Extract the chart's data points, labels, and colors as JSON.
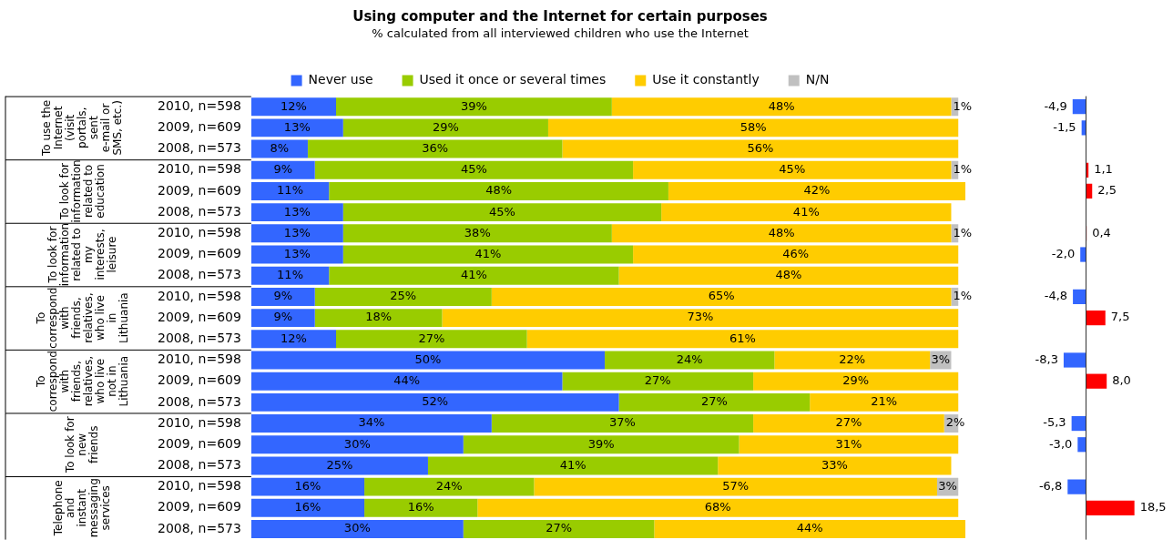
{
  "chart_data": [
    {
      "type": "bar",
      "orientation": "horizontal",
      "stacked": true,
      "title": "Using computer and the Internet for certain purposes",
      "subtitle": "% calculated from all interviewed children who use the Internet",
      "categories": [
        "2010, n=598",
        "2009, n=609",
        "2008, n=573",
        "2010, n=598",
        "2009, n=609",
        "2008, n=573",
        "2010, n=598",
        "2009, n=609",
        "2008, n=573",
        "2010, n=598",
        "2009, n=609",
        "2008, n=573",
        "2010, n=598",
        "2009, n=609",
        "2008, n=573",
        "2010, n=598",
        "2009, n=609",
        "2008, n=573",
        "2010, n=598",
        "2009, n=609",
        "2008, n=573"
      ],
      "annotations": [
        "To use the Internet (visit portals, sent e-mail or SMS, etc.)",
        "To look for information related to education",
        "To look for information related to my interests, leisure",
        "To correspond with friends, relatives, who live in Lithuania",
        "To correspond with friends, relatives, who live not in Lithuania",
        "To look for new friends",
        "Telephone and instant messaging services"
      ],
      "series": [
        {
          "name": "Never use",
          "color": "#3366ff",
          "values": [
            12,
            13,
            8,
            9,
            11,
            13,
            13,
            13,
            11,
            9,
            9,
            12,
            50,
            44,
            52,
            34,
            30,
            25,
            16,
            16,
            30
          ],
          "value_labels": [
            "12%",
            "13%",
            "8%",
            "9%",
            "11%",
            "13%",
            "13%",
            "13%",
            "11%",
            "9%",
            "9%",
            "12%",
            "50%",
            "44%",
            "52%",
            "34%",
            "30%",
            "25%",
            "16%",
            "16%",
            "30%"
          ]
        },
        {
          "name": "Used it once or several times",
          "color": "#99cc00",
          "values": [
            39,
            29,
            36,
            45,
            48,
            45,
            38,
            41,
            41,
            25,
            18,
            27,
            24,
            27,
            27,
            37,
            39,
            41,
            24,
            16,
            27
          ],
          "value_labels": [
            "39%",
            "29%",
            "36%",
            "45%",
            "48%",
            "45%",
            "38%",
            "41%",
            "41%",
            "25%",
            "18%",
            "27%",
            "24%",
            "27%",
            "27%",
            "37%",
            "39%",
            "41%",
            "24%",
            "16%",
            "27%"
          ]
        },
        {
          "name": "Use it constantly",
          "color": "#ffcc00",
          "values": [
            48,
            58,
            56,
            45,
            42,
            41,
            48,
            46,
            48,
            65,
            73,
            61,
            22,
            29,
            21,
            27,
            31,
            33,
            57,
            68,
            44
          ],
          "value_labels": [
            "48%",
            "58%",
            "56%",
            "45%",
            "42%",
            "41%",
            "48%",
            "46%",
            "48%",
            "65%",
            "73%",
            "61%",
            "22%",
            "29%",
            "21%",
            "27%",
            "31%",
            "33%",
            "57%",
            "68%",
            "44%"
          ]
        },
        {
          "name": "N/N",
          "color": "#c0c0c0",
          "values": [
            1,
            null,
            null,
            1,
            null,
            null,
            1,
            null,
            null,
            1,
            null,
            null,
            3,
            null,
            null,
            2,
            null,
            null,
            3,
            null,
            null
          ],
          "value_labels": [
            "1%",
            null,
            null,
            "1%",
            null,
            null,
            "1%",
            null,
            null,
            "1%",
            null,
            null,
            "3%",
            null,
            null,
            "2%",
            null,
            null,
            "3%",
            null,
            null
          ]
        }
      ],
      "xlim": [
        0,
        101
      ],
      "tick_labels": "y",
      "legend": "top"
    },
    {
      "type": "bar",
      "orientation": "horizontal",
      "categories": [
        null,
        null,
        null,
        null,
        null,
        null,
        null,
        null,
        null,
        null,
        null,
        null,
        null,
        null,
        null,
        null,
        null,
        null,
        null,
        null,
        null
      ],
      "values": [
        -4.9,
        -1.5,
        null,
        1.1,
        2.5,
        null,
        0.4,
        -2.0,
        null,
        -4.8,
        7.5,
        null,
        -8.3,
        8.0,
        null,
        -5.3,
        -3.0,
        null,
        -6.8,
        18.5,
        null
      ],
      "value_labels": [
        "-4,9",
        "-1,5",
        null,
        "1,1",
        "2,5",
        null,
        "0,4",
        "-2,0",
        null,
        "-4,8",
        "7,5",
        null,
        "-8,3",
        "8,0",
        null,
        "-5,3",
        "-3,0",
        null,
        "-6,8",
        "18,5",
        null
      ],
      "colors": [
        "#3366ff",
        "#3366ff",
        "#3366ff",
        "#ff0000",
        "#ff0000",
        "#3366ff",
        "#ff0000",
        "#3366ff",
        "#3366ff",
        "#3366ff",
        "#ff0000",
        "#3366ff",
        "#3366ff",
        "#ff0000",
        "#3366ff",
        "#3366ff",
        "#3366ff",
        "#3366ff",
        "#3366ff",
        "#ff0000",
        "#3366ff"
      ],
      "tick_labels": false,
      "legend": false
    }
  ]
}
